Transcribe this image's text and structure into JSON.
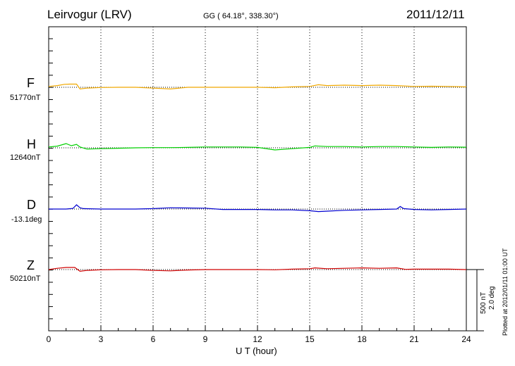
{
  "header": {
    "station": "Leirvogur (LRV)",
    "coords": "GG ( 64.18°, 338.30°)",
    "date": "2011/12/11"
  },
  "plotted_note": "Plotted at 2012/01/11 01:00 UT",
  "scale": {
    "nt": "500 nT",
    "deg": "2.0 deg"
  },
  "chart_data": {
    "type": "line",
    "xlabel": "U T (hour)",
    "xlim": [
      0,
      24
    ],
    "xticks": [
      0,
      3,
      6,
      9,
      12,
      15,
      18,
      21,
      24
    ],
    "grid": "vertical dotted at every 3 hours; dotted baseline per component",
    "scale_bar": "500 nT / 2.0 deg",
    "series": [
      {
        "name": "F",
        "baseline_label": "51770nT",
        "color": "#f0a800",
        "x": [
          0,
          0.5,
          0.9,
          1.2,
          1.6,
          1.8,
          2.2,
          3,
          4,
          5,
          6,
          7,
          8,
          9,
          10,
          11,
          12,
          13,
          14,
          15,
          15.5,
          16,
          17,
          18,
          19,
          20,
          21,
          22,
          23,
          24
        ],
        "y": [
          20,
          40,
          70,
          75,
          75,
          -40,
          -20,
          -5,
          0,
          0,
          -20,
          -40,
          0,
          0,
          0,
          0,
          0,
          -10,
          10,
          20,
          60,
          40,
          50,
          40,
          50,
          40,
          20,
          25,
          20,
          10
        ]
      },
      {
        "name": "H",
        "baseline_label": "12640nT",
        "color": "#00d000",
        "x": [
          0,
          0.5,
          1,
          1.3,
          1.6,
          1.8,
          2.2,
          3,
          4,
          5,
          6,
          7,
          8,
          9,
          10,
          11,
          12,
          13,
          14,
          15,
          15.3,
          16,
          17,
          18,
          19,
          20,
          21,
          22,
          23,
          24
        ],
        "y": [
          20,
          40,
          100,
          50,
          80,
          20,
          -30,
          -20,
          -10,
          0,
          5,
          5,
          10,
          20,
          20,
          20,
          10,
          -50,
          -20,
          10,
          45,
          30,
          30,
          20,
          30,
          30,
          20,
          10,
          20,
          15
        ]
      },
      {
        "name": "D",
        "baseline_label": "-13.1deg",
        "color": "#0000d0",
        "x": [
          0,
          1,
          1.4,
          1.6,
          1.8,
          2,
          3,
          4,
          5,
          6,
          7,
          8,
          9,
          10,
          11,
          12,
          13,
          14,
          15,
          15.5,
          16,
          17,
          18,
          19,
          20,
          20.2,
          20.4,
          21,
          22,
          23,
          24
        ],
        "y": [
          0,
          0,
          15,
          100,
          30,
          10,
          0,
          0,
          0,
          10,
          30,
          25,
          20,
          -10,
          -10,
          -10,
          -20,
          -20,
          -40,
          -60,
          -50,
          -30,
          -20,
          -10,
          0,
          60,
          10,
          -10,
          -20,
          -10,
          0
        ]
      },
      {
        "name": "Z",
        "baseline_label": "50210nT",
        "color": "#d00000",
        "x": [
          0,
          0.5,
          1,
          1.5,
          1.8,
          2.2,
          3,
          4,
          5,
          6,
          7,
          8,
          9,
          10,
          11,
          12,
          13,
          14,
          15,
          15.3,
          16,
          17,
          18,
          19,
          20,
          20.5,
          21,
          22,
          23,
          24
        ],
        "y": [
          0,
          30,
          50,
          50,
          -40,
          -20,
          -5,
          0,
          0,
          -20,
          -30,
          -10,
          0,
          0,
          0,
          0,
          -5,
          10,
          20,
          40,
          20,
          30,
          40,
          30,
          40,
          5,
          10,
          10,
          10,
          0
        ]
      }
    ]
  }
}
